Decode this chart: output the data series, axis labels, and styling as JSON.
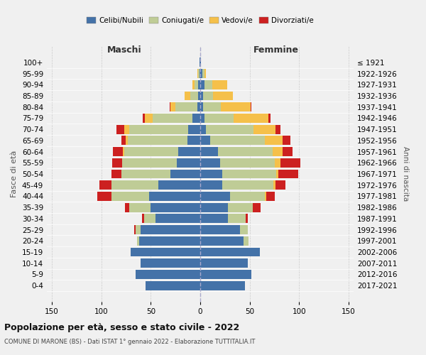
{
  "age_groups": [
    "0-4",
    "5-9",
    "10-14",
    "15-19",
    "20-24",
    "25-29",
    "30-34",
    "35-39",
    "40-44",
    "45-49",
    "50-54",
    "55-59",
    "60-64",
    "65-69",
    "70-74",
    "75-79",
    "80-84",
    "85-89",
    "90-94",
    "95-99",
    "100+"
  ],
  "birth_years": [
    "2017-2021",
    "2012-2016",
    "2007-2011",
    "2002-2006",
    "1997-2001",
    "1992-1996",
    "1987-1991",
    "1982-1986",
    "1977-1981",
    "1972-1976",
    "1967-1971",
    "1962-1966",
    "1957-1961",
    "1952-1956",
    "1947-1951",
    "1942-1946",
    "1937-1941",
    "1932-1936",
    "1927-1931",
    "1922-1926",
    "≤ 1921"
  ],
  "maschi": {
    "celibi": [
      55,
      65,
      60,
      70,
      62,
      60,
      45,
      50,
      52,
      42,
      30,
      24,
      22,
      13,
      12,
      8,
      3,
      2,
      2,
      1,
      1
    ],
    "coniugati": [
      0,
      0,
      0,
      0,
      2,
      5,
      12,
      22,
      38,
      48,
      50,
      55,
      55,
      60,
      60,
      40,
      22,
      8,
      4,
      1,
      0
    ],
    "vedovi": [
      0,
      0,
      0,
      0,
      0,
      0,
      0,
      0,
      0,
      0,
      0,
      0,
      1,
      2,
      5,
      8,
      5,
      6,
      2,
      1,
      0
    ],
    "divorziati": [
      0,
      0,
      0,
      0,
      0,
      2,
      2,
      4,
      14,
      12,
      10,
      10,
      10,
      5,
      8,
      2,
      1,
      0,
      0,
      0,
      0
    ]
  },
  "femmine": {
    "nubili": [
      45,
      52,
      48,
      60,
      44,
      40,
      28,
      28,
      30,
      22,
      22,
      20,
      18,
      10,
      6,
      4,
      3,
      3,
      4,
      2,
      1
    ],
    "coniugate": [
      0,
      0,
      0,
      0,
      5,
      8,
      18,
      25,
      35,
      52,
      55,
      55,
      55,
      55,
      48,
      30,
      18,
      10,
      8,
      2,
      0
    ],
    "vedove": [
      0,
      0,
      0,
      0,
      0,
      0,
      0,
      0,
      2,
      2,
      2,
      6,
      10,
      18,
      22,
      35,
      30,
      20,
      15,
      2,
      0
    ],
    "divorziate": [
      0,
      0,
      0,
      0,
      0,
      0,
      2,
      8,
      8,
      10,
      20,
      20,
      10,
      8,
      5,
      2,
      1,
      0,
      0,
      0,
      0
    ]
  },
  "colors": {
    "celibi": "#4472a8",
    "coniugati": "#bfcc96",
    "vedovi": "#f5c04a",
    "divorziati": "#cc2020"
  },
  "xlim": 155,
  "title": "Popolazione per età, sesso e stato civile - 2022",
  "subtitle": "COMUNE DI MARONE (BS) - Dati ISTAT 1° gennaio 2022 - Elaborazione TUTTITALIA.IT",
  "xlabel_left": "Maschi",
  "xlabel_right": "Femmine",
  "ylabel": "Fasce di età",
  "ylabel_right": "Anni di nascita",
  "legend_labels": [
    "Celibi/Nubili",
    "Coniugati/e",
    "Vedovi/e",
    "Divorziati/e"
  ],
  "background_color": "#f0f0f0"
}
